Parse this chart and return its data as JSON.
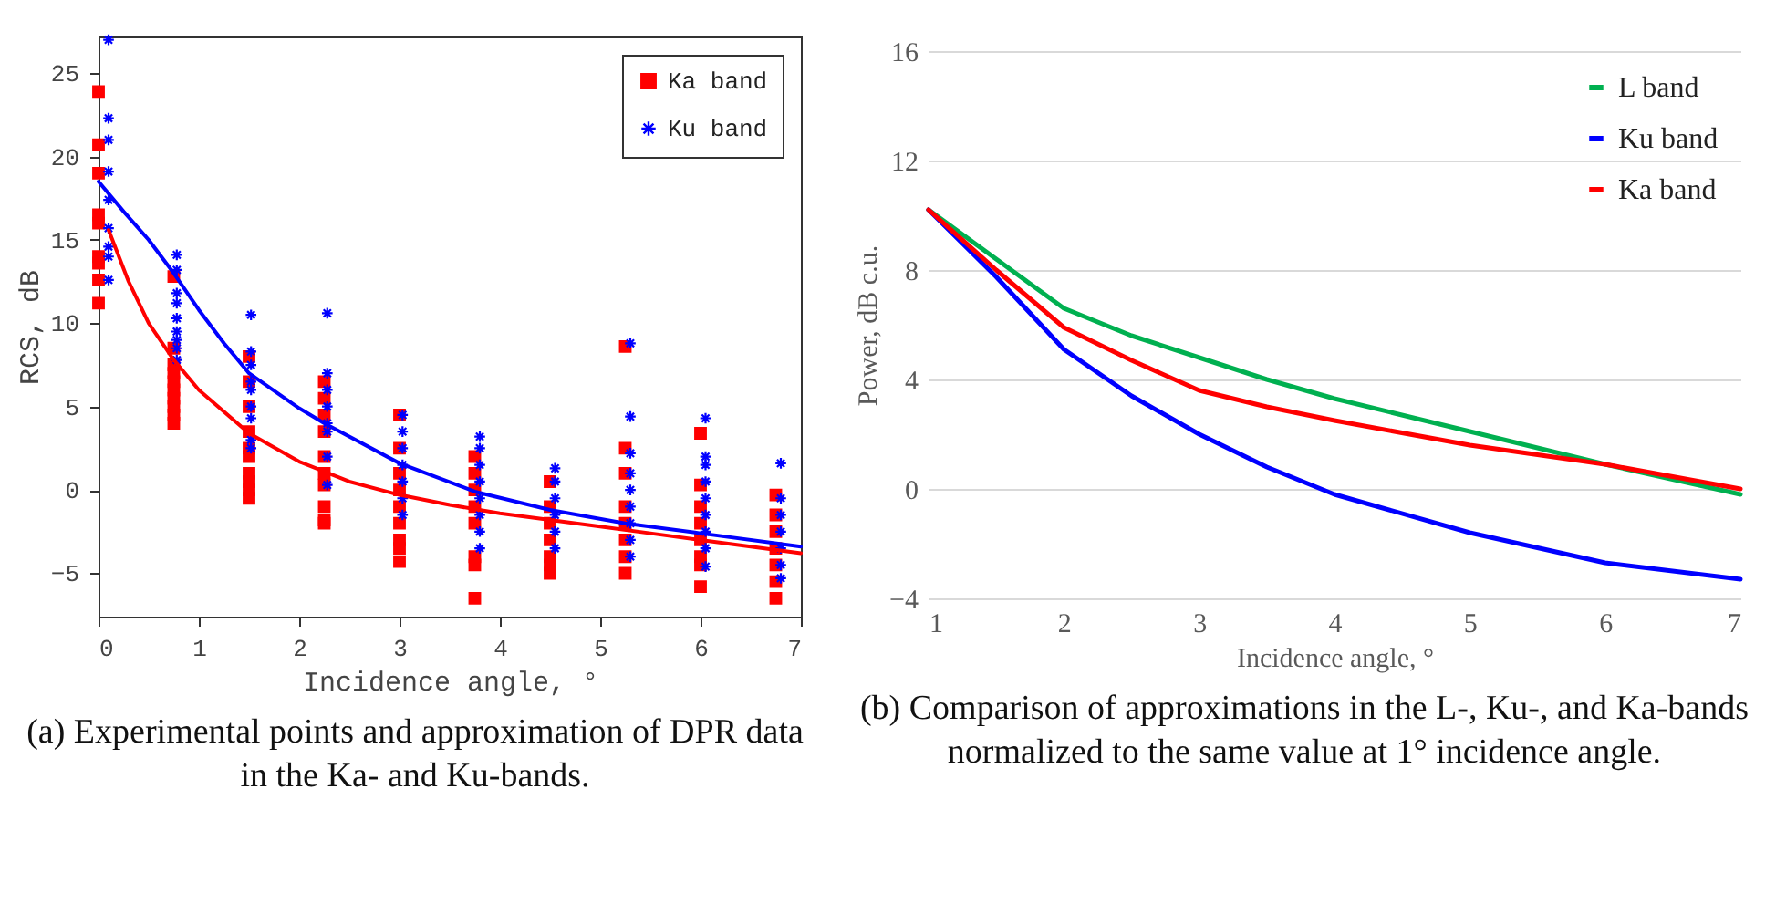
{
  "chart_data": [
    {
      "type": "scatter",
      "xlabel": "Incidence angle, °",
      "ylabel": "RCS, dB",
      "xlim": [
        0,
        7
      ],
      "xticks": [
        0,
        1,
        2,
        3,
        4,
        5,
        6,
        7
      ],
      "ylim": [
        -7.6,
        27.2
      ],
      "yticks": [
        -5,
        0,
        5,
        10,
        15,
        20,
        25
      ],
      "grid": false,
      "legend": "top right",
      "annotations": [
        "(a) Experimental points and approximation of DPR data in the Ka- and Ku-bands."
      ],
      "series": [
        {
          "name": "Ka band",
          "color": "#ff0000",
          "marker": "square",
          "x": [
            0,
            0,
            0,
            0,
            0,
            0,
            0,
            0,
            0,
            0.75,
            0.75,
            0.75,
            0.75,
            0.75,
            0.75,
            0.75,
            0.75,
            0.75,
            0.75,
            1.5,
            1.5,
            1.5,
            1.5,
            1.5,
            1.5,
            1.5,
            1.5,
            1.5,
            1.5,
            2.25,
            2.25,
            2.25,
            2.25,
            2.25,
            2.25,
            2.25,
            2.25,
            2.25,
            2.25,
            3,
            3,
            3,
            3,
            3,
            3,
            3,
            3,
            3,
            3.75,
            3.75,
            3.75,
            3.75,
            3.75,
            3.75,
            3.75,
            3.75,
            4.5,
            4.5,
            4.5,
            4.5,
            4.5,
            4.5,
            4.5,
            5.25,
            5.25,
            5.25,
            5.25,
            5.25,
            5.25,
            5.25,
            5.25,
            6,
            6,
            6,
            6,
            6,
            6,
            6,
            6,
            6.75,
            6.75,
            6.75,
            6.75,
            6.75,
            6.75,
            6.75
          ],
          "values": [
            23.9,
            20.7,
            19,
            16.5,
            16,
            14,
            13.6,
            12.6,
            11.2,
            12.8,
            8.5,
            7.5,
            7,
            6.5,
            6,
            5.5,
            5,
            4.5,
            4,
            8,
            6.5,
            5,
            3.5,
            2.5,
            2,
            1,
            0.5,
            0,
            -0.5,
            6.5,
            5.5,
            4.5,
            3.5,
            2,
            1,
            0.3,
            -1,
            -1.8,
            -2,
            4.5,
            2.5,
            1,
            0,
            -1,
            -2,
            -3,
            -3.5,
            -4.3,
            2,
            1,
            0,
            -1,
            -2,
            -4,
            -4.5,
            -6.5,
            0.5,
            -1,
            -2,
            -3,
            -4,
            -4.5,
            -5,
            8.6,
            2.5,
            1,
            -1,
            -2,
            -3,
            -4,
            -5,
            3.4,
            0.3,
            -1,
            -2,
            -3,
            -4,
            -4.5,
            -5.8,
            -0.3,
            -1.5,
            -2.5,
            -3.5,
            -4.5,
            -5.5,
            -6.5
          ]
        },
        {
          "name": "Ku band",
          "color": "#0000ff",
          "marker": "cross",
          "x": [
            0.1,
            0.1,
            0.1,
            0.1,
            0.1,
            0.1,
            0.1,
            0.1,
            0.1,
            0.78,
            0.78,
            0.78,
            0.78,
            0.78,
            0.78,
            0.78,
            0.78,
            0.78,
            1.52,
            1.52,
            1.52,
            1.52,
            1.52,
            1.52,
            1.52,
            1.52,
            1.52,
            2.28,
            2.28,
            2.28,
            2.28,
            2.28,
            2.28,
            2.28,
            2.28,
            3.03,
            3.03,
            3.03,
            3.03,
            3.03,
            3.03,
            3.03,
            3.8,
            3.8,
            3.8,
            3.8,
            3.8,
            3.8,
            3.8,
            3.8,
            4.55,
            4.55,
            4.55,
            4.55,
            4.55,
            4.55,
            5.3,
            5.3,
            5.3,
            5.3,
            5.3,
            5.3,
            5.3,
            5.3,
            5.3,
            6.05,
            6.05,
            6.05,
            6.05,
            6.05,
            6.05,
            6.05,
            6.05,
            6.05,
            6.8,
            6.8,
            6.8,
            6.8,
            6.8,
            6.8,
            6.8
          ],
          "values": [
            27,
            22.3,
            21,
            19.1,
            17.4,
            15.7,
            14.6,
            14,
            12.6,
            14.1,
            13.2,
            11.8,
            11.2,
            10.3,
            9.5,
            9,
            8.5,
            7.8,
            10.5,
            8.3,
            7.5,
            6.5,
            6,
            5,
            4.3,
            3,
            2.5,
            10.6,
            7,
            6,
            5,
            4,
            3.5,
            2,
            0.3,
            4.5,
            3.5,
            2.5,
            1.5,
            0.5,
            -0.5,
            -1.5,
            3.2,
            2.5,
            1.5,
            0.5,
            -0.5,
            -1.5,
            -2.5,
            -3.5,
            1.3,
            0.5,
            -0.5,
            -1.5,
            -2.5,
            -3.5,
            8.8,
            4.4,
            2.2,
            1,
            0,
            -1,
            -2,
            -3,
            -4,
            4.3,
            2,
            1.5,
            0.5,
            -0.5,
            -1.5,
            -2.5,
            -3.5,
            -4.6,
            1.6,
            -0.5,
            -1.5,
            -2.5,
            -3.5,
            -4.5,
            -5.3
          ]
        },
        {
          "type": "line",
          "color": "#ff0000",
          "x": [
            0.1,
            0.3,
            0.5,
            0.75,
            1,
            1.5,
            2,
            2.5,
            3,
            3.5,
            4,
            4.5,
            5,
            5.5,
            6,
            6.5,
            7
          ],
          "values": [
            15.6,
            12.5,
            10,
            7.8,
            6,
            3.4,
            1.7,
            0.5,
            -0.3,
            -0.9,
            -1.4,
            -1.8,
            -2.2,
            -2.6,
            -3,
            -3.4,
            -3.8
          ]
        },
        {
          "type": "line",
          "color": "#0000ff",
          "x": [
            0,
            0.25,
            0.5,
            0.75,
            1,
            1.25,
            1.5,
            2,
            2.25,
            3,
            3.75,
            4.5,
            5.25,
            6,
            7
          ],
          "values": [
            18.5,
            16.7,
            15,
            13,
            10.8,
            8.8,
            7,
            4.9,
            4,
            1.6,
            -0.1,
            -1.2,
            -2,
            -2.6,
            -3.4
          ]
        }
      ]
    },
    {
      "type": "line",
      "xlabel": "Incidence angle, °",
      "ylabel": "Power, dB c.u.",
      "xlim": [
        1,
        7
      ],
      "xticks": [
        1,
        2,
        3,
        4,
        5,
        6,
        7
      ],
      "ylim": [
        -4,
        16
      ],
      "yticks": [
        -4,
        0,
        4,
        8,
        12,
        16
      ],
      "grid": "y",
      "legend": "top right",
      "annotations": [
        "(b) Comparison of approximations in the L-, Ku-, and Ka-bands normalized to the same value at 1° incidence angle."
      ],
      "x": [
        1,
        1.5,
        2,
        2.5,
        3,
        3.5,
        4,
        5,
        6,
        7
      ],
      "series": [
        {
          "name": "L band",
          "color": "#00b050",
          "values": [
            10.2,
            8.4,
            6.6,
            5.6,
            4.8,
            4,
            3.3,
            2.1,
            0.9,
            -0.2
          ]
        },
        {
          "name": "Ku band",
          "color": "#0000ff",
          "values": [
            10.2,
            7.75,
            5.1,
            3.4,
            2,
            0.8,
            -0.2,
            -1.6,
            -2.7,
            -3.3
          ]
        },
        {
          "name": "Ka band",
          "color": "#ff0000",
          "values": [
            10.2,
            8,
            5.9,
            4.7,
            3.6,
            3,
            2.5,
            1.6,
            0.9,
            0
          ]
        }
      ]
    }
  ]
}
